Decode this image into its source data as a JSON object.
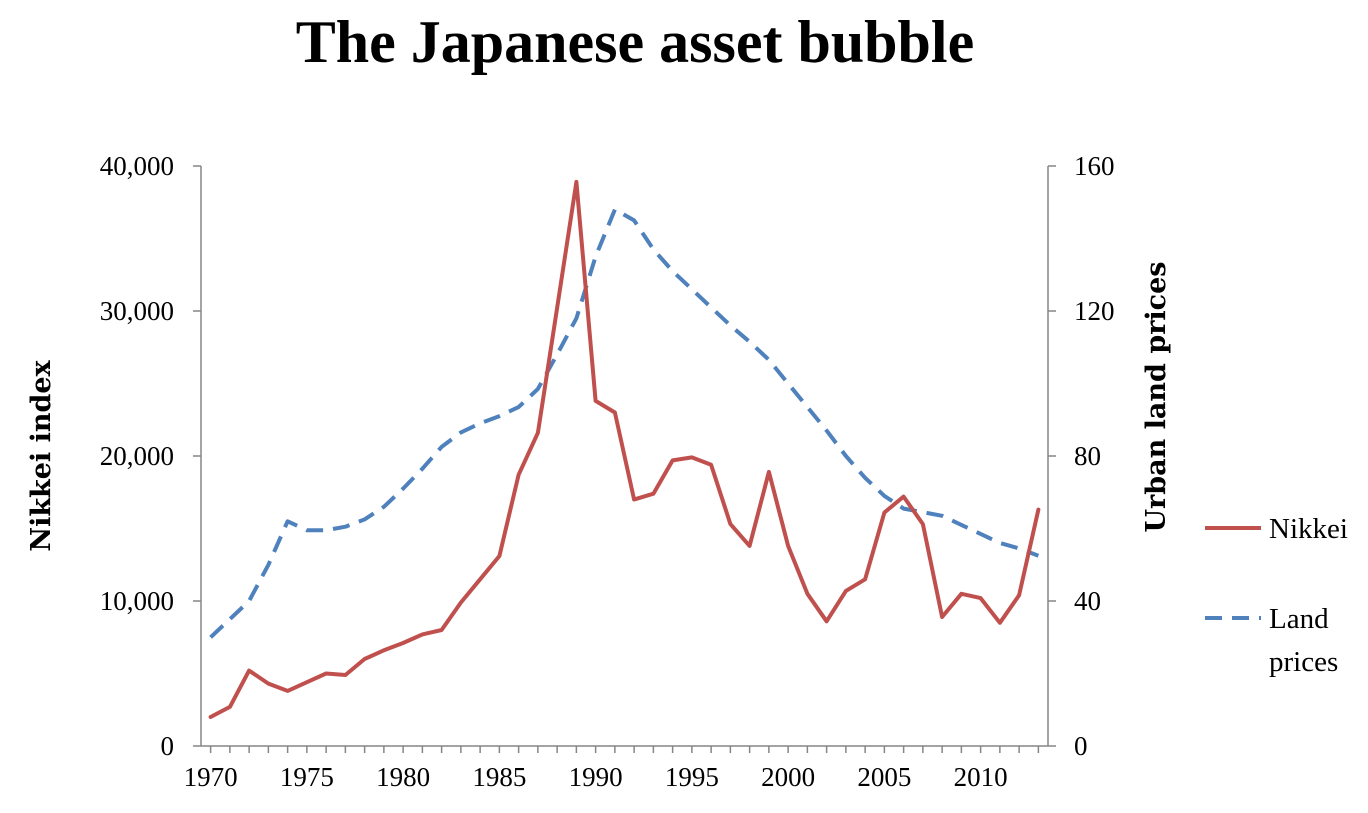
{
  "chart_data": {
    "type": "line",
    "title": "The Japanese asset bubble",
    "xlabel": "",
    "ylabel": "Nikkei index",
    "y2label": "Urban land prices",
    "xlim": [
      1969.5,
      2013.5
    ],
    "ylim": [
      0,
      40000
    ],
    "y2lim": [
      0,
      160
    ],
    "x_ticks": [
      1970,
      1975,
      1980,
      1985,
      1990,
      1995,
      2000,
      2005,
      2010
    ],
    "x_tick_labels": [
      "1970",
      "1975",
      "1980",
      "1985",
      "1990",
      "1995",
      "2000",
      "2005",
      "2010"
    ],
    "y_ticks": [
      0,
      10000,
      20000,
      30000,
      40000
    ],
    "y_tick_labels": [
      "0",
      "10,000",
      "20,000",
      "30,000",
      "40,000"
    ],
    "y2_ticks": [
      0,
      40,
      80,
      120,
      160
    ],
    "y2_tick_labels": [
      "0",
      "40",
      "80",
      "120",
      "160"
    ],
    "grid": false,
    "legend_position": "right",
    "series": [
      {
        "name": "Nikkei",
        "legend_lines": [
          "Nikkei"
        ],
        "axis": "left",
        "color": "#c0504d",
        "style": "solid",
        "x": [
          1970,
          1971,
          1972,
          1973,
          1974,
          1975,
          1976,
          1977,
          1978,
          1979,
          1980,
          1981,
          1982,
          1983,
          1984,
          1985,
          1986,
          1987,
          1988,
          1989,
          1990,
          1991,
          1992,
          1993,
          1994,
          1995,
          1996,
          1997,
          1998,
          1999,
          2000,
          2001,
          2002,
          2003,
          2004,
          2005,
          2006,
          2007,
          2008,
          2009,
          2010,
          2011,
          2012,
          2013
        ],
        "values": [
          2000,
          2700,
          5200,
          4300,
          3800,
          4400,
          5000,
          4900,
          6000,
          6600,
          7100,
          7700,
          8000,
          9900,
          11500,
          13100,
          18700,
          21600,
          30200,
          38900,
          23800,
          23000,
          17000,
          17400,
          19700,
          19900,
          19400,
          15300,
          13800,
          18900,
          13800,
          10500,
          8600,
          10700,
          11500,
          16100,
          17200,
          15300,
          8900,
          10500,
          10200,
          8500,
          10400,
          16300
        ]
      },
      {
        "name": "Land prices",
        "legend_lines": [
          "Land",
          "prices"
        ],
        "axis": "right",
        "color": "#4f81bd",
        "style": "dashed",
        "x": [
          1970,
          1971,
          1972,
          1973,
          1974,
          1975,
          1976,
          1977,
          1978,
          1979,
          1980,
          1981,
          1982,
          1983,
          1984,
          1985,
          1986,
          1987,
          1988,
          1989,
          1990,
          1991,
          1992,
          1993,
          1994,
          1995,
          1996,
          1997,
          1998,
          1999,
          2000,
          2001,
          2002,
          2003,
          2004,
          2005,
          2006,
          2007,
          2008,
          2009,
          2010,
          2011,
          2012,
          2013
        ],
        "values": [
          30,
          35,
          40,
          50,
          62,
          59.5,
          59.5,
          60.5,
          62.5,
          66,
          71,
          76.5,
          82.5,
          86.5,
          89,
          91,
          93.5,
          98.5,
          108,
          118,
          135,
          148,
          145,
          137,
          131,
          126,
          121,
          116,
          111.5,
          106.5,
          100,
          93.5,
          87,
          80,
          74,
          69,
          65.5,
          64.5,
          63.5,
          61,
          58.5,
          56,
          54.5,
          52.5
        ]
      }
    ]
  }
}
